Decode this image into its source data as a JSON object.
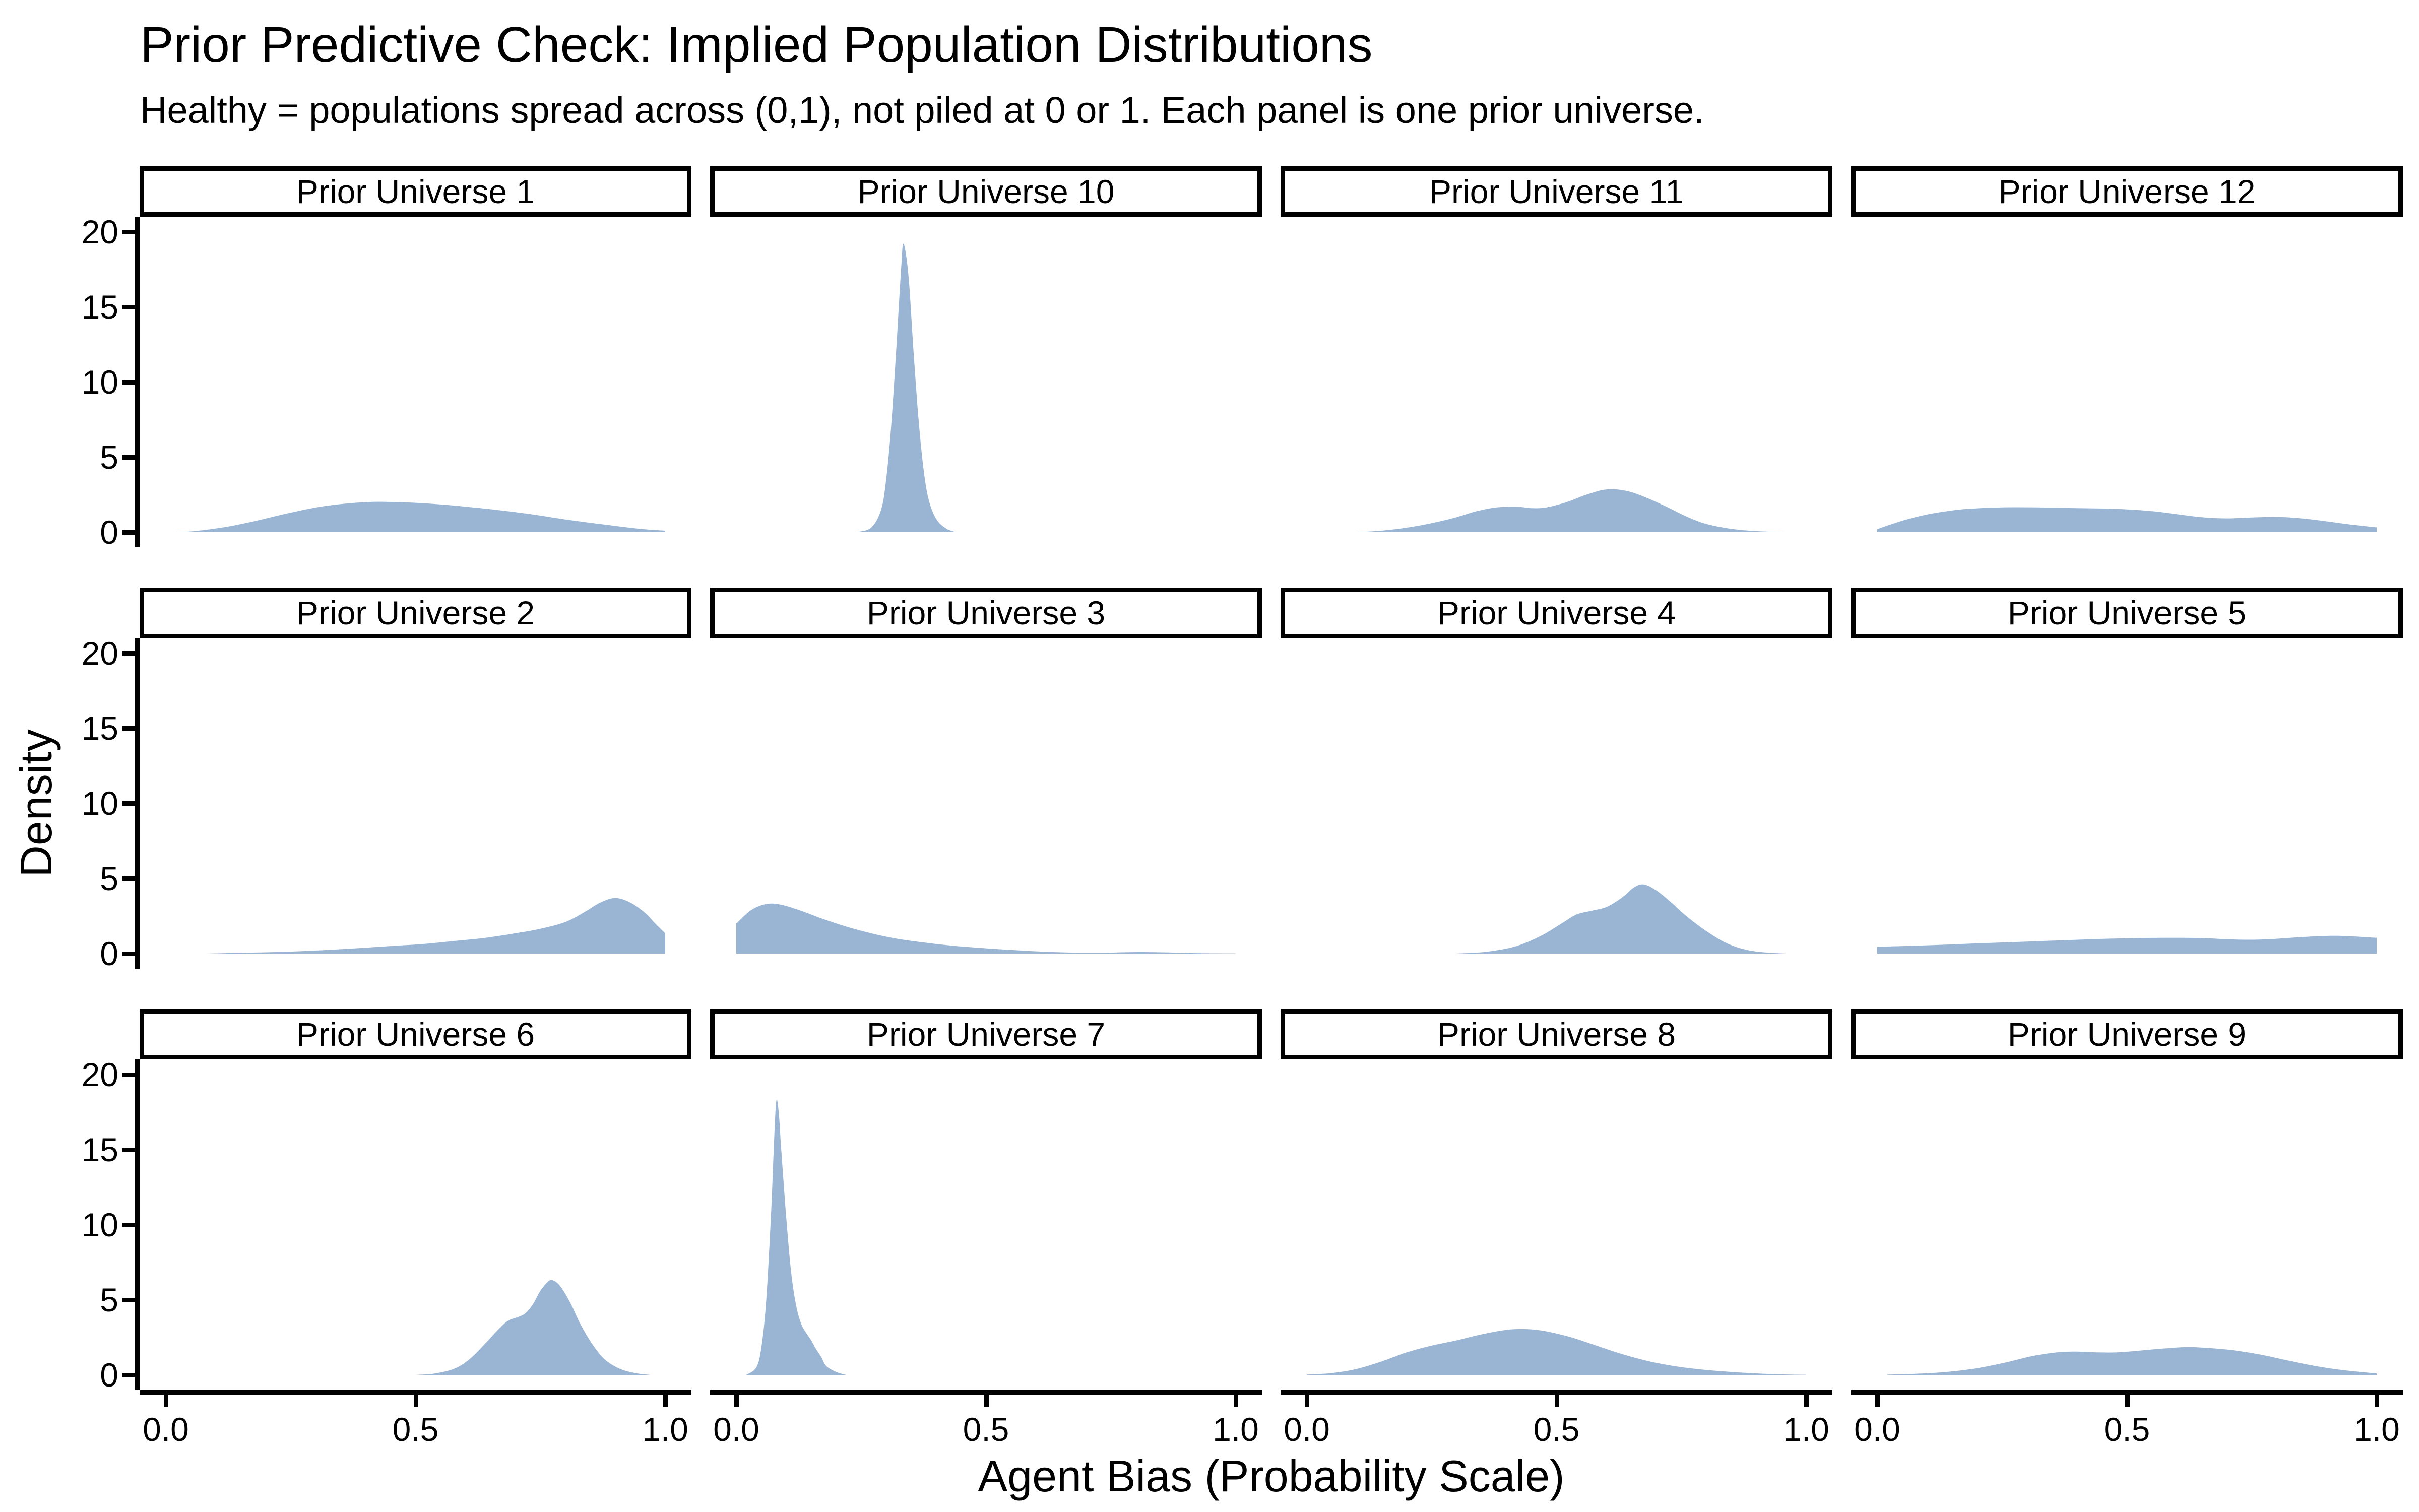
{
  "title": "Prior Predictive Check: Implied Population Distributions",
  "subtitle": "Healthy = populations spread across (0,1), not piled at 0 or 1. Each panel is one prior universe.",
  "chart_data": {
    "type": "area",
    "title": "Prior Predictive Check: Implied Population Distributions",
    "subtitle": "Healthy = populations spread across (0,1), not piled at 0 or 1. Each panel is one prior universe.",
    "xlabel": "Agent Bias (Probability Scale)",
    "ylabel": "Density",
    "xlim": [
      0,
      1
    ],
    "ylim": [
      0,
      20
    ],
    "x_tick_labels": [
      "0.0",
      "0.5",
      "1.0"
    ],
    "x_tick_values": [
      0,
      0.5,
      1
    ],
    "y_tick_labels": [
      "0",
      "5",
      "10",
      "15",
      "20"
    ],
    "y_tick_values": [
      0,
      5,
      10,
      15,
      20
    ],
    "grid": "off",
    "legend": "none",
    "facet_layout": {
      "rows": 3,
      "cols": 4
    },
    "fill_color": "#9AB5D4",
    "axis_color": "#000000",
    "strip_bg_color": "#ffffff",
    "panels": [
      {
        "label": "Prior Universe 1",
        "points": [
          [
            0.02,
            0
          ],
          [
            0.06,
            0.08
          ],
          [
            0.12,
            0.35
          ],
          [
            0.18,
            0.75
          ],
          [
            0.25,
            1.3
          ],
          [
            0.32,
            1.75
          ],
          [
            0.4,
            2.0
          ],
          [
            0.47,
            2.0
          ],
          [
            0.55,
            1.85
          ],
          [
            0.63,
            1.6
          ],
          [
            0.72,
            1.25
          ],
          [
            0.8,
            0.85
          ],
          [
            0.88,
            0.5
          ],
          [
            0.95,
            0.22
          ],
          [
            1.0,
            0.1
          ]
        ]
      },
      {
        "label": "Prior Universe 10",
        "points": [
          [
            0.24,
            0
          ],
          [
            0.27,
            0.3
          ],
          [
            0.29,
            1.5
          ],
          [
            0.3,
            3.5
          ],
          [
            0.31,
            7
          ],
          [
            0.32,
            12
          ],
          [
            0.33,
            17.5
          ],
          [
            0.335,
            19.2
          ],
          [
            0.345,
            17
          ],
          [
            0.355,
            12
          ],
          [
            0.365,
            7.5
          ],
          [
            0.375,
            4.2
          ],
          [
            0.385,
            2.2
          ],
          [
            0.4,
            0.9
          ],
          [
            0.42,
            0.25
          ],
          [
            0.44,
            0
          ]
        ]
      },
      {
        "label": "Prior Universe 11",
        "points": [
          [
            0.1,
            0
          ],
          [
            0.15,
            0.1
          ],
          [
            0.2,
            0.3
          ],
          [
            0.25,
            0.6
          ],
          [
            0.3,
            1.0
          ],
          [
            0.34,
            1.4
          ],
          [
            0.38,
            1.65
          ],
          [
            0.42,
            1.7
          ],
          [
            0.45,
            1.6
          ],
          [
            0.48,
            1.65
          ],
          [
            0.52,
            2.0
          ],
          [
            0.56,
            2.5
          ],
          [
            0.6,
            2.85
          ],
          [
            0.64,
            2.75
          ],
          [
            0.68,
            2.3
          ],
          [
            0.72,
            1.7
          ],
          [
            0.76,
            1.05
          ],
          [
            0.8,
            0.55
          ],
          [
            0.85,
            0.22
          ],
          [
            0.9,
            0.07
          ],
          [
            0.96,
            0
          ]
        ]
      },
      {
        "label": "Prior Universe 12",
        "points": [
          [
            0,
            0.2
          ],
          [
            0.03,
            0.55
          ],
          [
            0.07,
            0.95
          ],
          [
            0.12,
            1.3
          ],
          [
            0.18,
            1.55
          ],
          [
            0.25,
            1.65
          ],
          [
            0.32,
            1.65
          ],
          [
            0.4,
            1.6
          ],
          [
            0.48,
            1.55
          ],
          [
            0.55,
            1.4
          ],
          [
            0.6,
            1.2
          ],
          [
            0.65,
            1.0
          ],
          [
            0.7,
            0.92
          ],
          [
            0.75,
            0.98
          ],
          [
            0.8,
            1.02
          ],
          [
            0.85,
            0.92
          ],
          [
            0.9,
            0.72
          ],
          [
            0.95,
            0.5
          ],
          [
            1.0,
            0.32
          ]
        ]
      },
      {
        "label": "Prior Universe 2",
        "points": [
          [
            0.08,
            0
          ],
          [
            0.15,
            0.05
          ],
          [
            0.22,
            0.1
          ],
          [
            0.3,
            0.2
          ],
          [
            0.38,
            0.35
          ],
          [
            0.45,
            0.5
          ],
          [
            0.52,
            0.65
          ],
          [
            0.58,
            0.85
          ],
          [
            0.64,
            1.05
          ],
          [
            0.7,
            1.35
          ],
          [
            0.75,
            1.65
          ],
          [
            0.8,
            2.1
          ],
          [
            0.84,
            2.8
          ],
          [
            0.87,
            3.4
          ],
          [
            0.9,
            3.7
          ],
          [
            0.93,
            3.4
          ],
          [
            0.96,
            2.7
          ],
          [
            0.98,
            2.0
          ],
          [
            1.0,
            1.35
          ]
        ]
      },
      {
        "label": "Prior Universe 3",
        "points": [
          [
            0,
            2.0
          ],
          [
            0.03,
            2.9
          ],
          [
            0.06,
            3.3
          ],
          [
            0.09,
            3.25
          ],
          [
            0.13,
            2.85
          ],
          [
            0.17,
            2.35
          ],
          [
            0.22,
            1.8
          ],
          [
            0.27,
            1.35
          ],
          [
            0.32,
            1.0
          ],
          [
            0.38,
            0.72
          ],
          [
            0.44,
            0.5
          ],
          [
            0.5,
            0.35
          ],
          [
            0.56,
            0.22
          ],
          [
            0.62,
            0.12
          ],
          [
            0.68,
            0.06
          ],
          [
            0.74,
            0.06
          ],
          [
            0.8,
            0.1
          ],
          [
            0.86,
            0.08
          ],
          [
            0.92,
            0.03
          ],
          [
            1.0,
            0.01
          ]
        ]
      },
      {
        "label": "Prior Universe 4",
        "points": [
          [
            0.3,
            0
          ],
          [
            0.36,
            0.12
          ],
          [
            0.42,
            0.5
          ],
          [
            0.47,
            1.2
          ],
          [
            0.51,
            2.0
          ],
          [
            0.54,
            2.6
          ],
          [
            0.57,
            2.85
          ],
          [
            0.6,
            3.1
          ],
          [
            0.63,
            3.7
          ],
          [
            0.655,
            4.4
          ],
          [
            0.675,
            4.6
          ],
          [
            0.7,
            4.2
          ],
          [
            0.73,
            3.4
          ],
          [
            0.76,
            2.5
          ],
          [
            0.8,
            1.5
          ],
          [
            0.84,
            0.7
          ],
          [
            0.88,
            0.25
          ],
          [
            0.92,
            0.07
          ],
          [
            0.96,
            0
          ]
        ]
      },
      {
        "label": "Prior Universe 5",
        "points": [
          [
            0,
            0.45
          ],
          [
            0.1,
            0.55
          ],
          [
            0.2,
            0.68
          ],
          [
            0.3,
            0.8
          ],
          [
            0.4,
            0.92
          ],
          [
            0.5,
            1.02
          ],
          [
            0.58,
            1.05
          ],
          [
            0.65,
            1.03
          ],
          [
            0.72,
            0.93
          ],
          [
            0.78,
            0.95
          ],
          [
            0.85,
            1.1
          ],
          [
            0.92,
            1.18
          ],
          [
            1.0,
            1.05
          ]
        ]
      },
      {
        "label": "Prior Universe 6",
        "points": [
          [
            0.5,
            0
          ],
          [
            0.54,
            0.1
          ],
          [
            0.58,
            0.45
          ],
          [
            0.61,
            1.1
          ],
          [
            0.64,
            2.1
          ],
          [
            0.665,
            3.0
          ],
          [
            0.685,
            3.6
          ],
          [
            0.705,
            3.85
          ],
          [
            0.72,
            4.1
          ],
          [
            0.735,
            4.7
          ],
          [
            0.75,
            5.6
          ],
          [
            0.765,
            6.2
          ],
          [
            0.775,
            6.3
          ],
          [
            0.79,
            5.9
          ],
          [
            0.81,
            4.8
          ],
          [
            0.83,
            3.4
          ],
          [
            0.855,
            2.0
          ],
          [
            0.88,
            1.0
          ],
          [
            0.91,
            0.4
          ],
          [
            0.94,
            0.12
          ],
          [
            0.97,
            0
          ]
        ]
      },
      {
        "label": "Prior Universe 7",
        "points": [
          [
            0.02,
            0
          ],
          [
            0.04,
            0.5
          ],
          [
            0.05,
            1.8
          ],
          [
            0.06,
            5
          ],
          [
            0.07,
            11
          ],
          [
            0.075,
            15
          ],
          [
            0.08,
            18.2
          ],
          [
            0.085,
            17.5
          ],
          [
            0.09,
            15
          ],
          [
            0.1,
            10.5
          ],
          [
            0.11,
            6.8
          ],
          [
            0.12,
            4.6
          ],
          [
            0.13,
            3.4
          ],
          [
            0.14,
            2.8
          ],
          [
            0.15,
            2.3
          ],
          [
            0.16,
            1.7
          ],
          [
            0.17,
            1.2
          ],
          [
            0.18,
            0.6
          ],
          [
            0.2,
            0.2
          ],
          [
            0.22,
            0
          ]
        ]
      },
      {
        "label": "Prior Universe 8",
        "points": [
          [
            0,
            0.02
          ],
          [
            0.05,
            0.12
          ],
          [
            0.1,
            0.4
          ],
          [
            0.15,
            0.9
          ],
          [
            0.2,
            1.5
          ],
          [
            0.25,
            1.95
          ],
          [
            0.3,
            2.3
          ],
          [
            0.35,
            2.7
          ],
          [
            0.4,
            3.0
          ],
          [
            0.44,
            3.05
          ],
          [
            0.48,
            2.9
          ],
          [
            0.53,
            2.5
          ],
          [
            0.58,
            1.95
          ],
          [
            0.63,
            1.4
          ],
          [
            0.68,
            0.95
          ],
          [
            0.73,
            0.62
          ],
          [
            0.78,
            0.4
          ],
          [
            0.84,
            0.22
          ],
          [
            0.9,
            0.1
          ],
          [
            0.96,
            0.03
          ],
          [
            1.0,
            0.01
          ]
        ]
      },
      {
        "label": "Prior Universe 9",
        "points": [
          [
            0.02,
            0.02
          ],
          [
            0.08,
            0.08
          ],
          [
            0.14,
            0.2
          ],
          [
            0.2,
            0.45
          ],
          [
            0.26,
            0.85
          ],
          [
            0.31,
            1.25
          ],
          [
            0.36,
            1.5
          ],
          [
            0.4,
            1.55
          ],
          [
            0.44,
            1.5
          ],
          [
            0.48,
            1.5
          ],
          [
            0.52,
            1.6
          ],
          [
            0.57,
            1.75
          ],
          [
            0.62,
            1.85
          ],
          [
            0.66,
            1.8
          ],
          [
            0.71,
            1.65
          ],
          [
            0.76,
            1.4
          ],
          [
            0.81,
            1.05
          ],
          [
            0.86,
            0.7
          ],
          [
            0.91,
            0.42
          ],
          [
            0.96,
            0.22
          ],
          [
            1.0,
            0.1
          ]
        ]
      }
    ]
  }
}
